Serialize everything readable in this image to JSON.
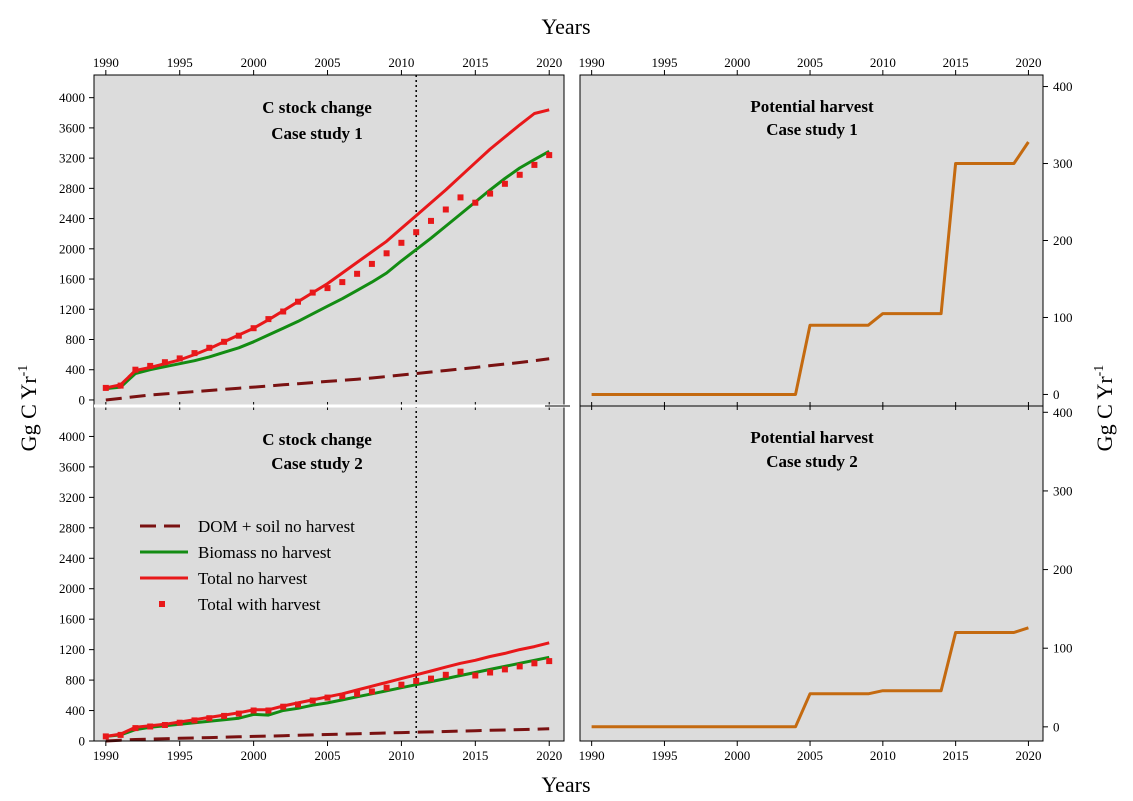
{
  "figure": {
    "x_title_top": "Years",
    "x_title_bottom": "Years",
    "y_title_left": "Gg C Yr",
    "y_title_right": "Gg C Yr",
    "y_title_superscript": "-1",
    "reference_year_dotted_line": 2011,
    "legend_placement": "middle-left of lower-left panel",
    "colors": {
      "panel_bg": "#dcdcdc",
      "dom_soil": "#7a1212",
      "biomass": "#138c13",
      "total_no_harvest": "#e8181a",
      "total_with_harvest": "#e8181a",
      "potential_harvest": "#c46a10"
    },
    "legend": [
      {
        "label": "DOM + soil no harvest",
        "style": "dashed",
        "color": "#7a1212"
      },
      {
        "label": "Biomass no harvest",
        "style": "solid",
        "color": "#138c13"
      },
      {
        "label": "Total no harvest",
        "style": "solid",
        "color": "#e8181a"
      },
      {
        "label": "Total with harvest",
        "style": "dots",
        "color": "#e8181a"
      }
    ]
  },
  "chart_data": [
    {
      "type": "line",
      "panel": "top-left",
      "title_line1": "C stock change",
      "title_line2": "Case study 1",
      "x": [
        1990,
        1991,
        1992,
        1993,
        1994,
        1995,
        1996,
        1997,
        1998,
        1999,
        2000,
        2001,
        2002,
        2003,
        2004,
        2005,
        2006,
        2007,
        2008,
        2009,
        2010,
        2011,
        2012,
        2013,
        2014,
        2015,
        2016,
        2017,
        2018,
        2019,
        2020
      ],
      "xlim": [
        1989.2,
        2021
      ],
      "xticks": [
        1990,
        1995,
        2000,
        2005,
        2010,
        2015,
        2020
      ],
      "ylim": [
        -80,
        4300
      ],
      "yticks": [
        0,
        400,
        800,
        1200,
        1600,
        2000,
        2400,
        2800,
        3200,
        3600,
        4000
      ],
      "grid": false,
      "series": [
        {
          "name": "DOM + soil no harvest",
          "values": [
            0,
            20,
            45,
            65,
            80,
            95,
            110,
            125,
            140,
            155,
            170,
            185,
            200,
            215,
            230,
            245,
            260,
            275,
            290,
            310,
            330,
            350,
            370,
            390,
            410,
            430,
            455,
            475,
            495,
            520,
            545
          ]
        },
        {
          "name": "Biomass no harvest",
          "values": [
            150,
            170,
            350,
            400,
            440,
            480,
            520,
            570,
            630,
            690,
            770,
            860,
            950,
            1040,
            1140,
            1240,
            1340,
            1450,
            1560,
            1680,
            1840,
            1990,
            2140,
            2300,
            2460,
            2620,
            2780,
            2930,
            3070,
            3180,
            3290
          ]
        },
        {
          "name": "Total no harvest",
          "values": [
            160,
            200,
            390,
            430,
            480,
            530,
            600,
            680,
            770,
            860,
            950,
            1060,
            1180,
            1300,
            1420,
            1540,
            1680,
            1820,
            1960,
            2100,
            2270,
            2440,
            2610,
            2780,
            2960,
            3140,
            3320,
            3480,
            3640,
            3790,
            3840
          ]
        },
        {
          "name": "Total with harvest",
          "values": [
            160,
            190,
            400,
            450,
            500,
            550,
            620,
            690,
            770,
            850,
            950,
            1070,
            1170,
            1300,
            1420,
            1480,
            1560,
            1670,
            1800,
            1940,
            2080,
            2220,
            2370,
            2520,
            2680,
            2610,
            2730,
            2860,
            2980,
            3110,
            3240
          ]
        }
      ]
    },
    {
      "type": "line",
      "panel": "top-right",
      "title_line1": "Potential harvest",
      "title_line2": "Case study 1",
      "x": [
        1990,
        2004,
        2005,
        2009,
        2010,
        2014,
        2015,
        2019,
        2020
      ],
      "xlim": [
        1989.2,
        2021
      ],
      "xticks": [
        1990,
        1995,
        2000,
        2005,
        2010,
        2015,
        2020
      ],
      "ylim": [
        -15,
        415
      ],
      "yticks": [
        0,
        100,
        200,
        300,
        400
      ],
      "grid": false,
      "series": [
        {
          "name": "Potential harvest",
          "values": [
            0,
            0,
            90,
            90,
            105,
            105,
            300,
            300,
            328
          ]
        }
      ]
    },
    {
      "type": "line",
      "panel": "bottom-left",
      "title_line1": "C stock change",
      "title_line2": "Case study 2",
      "x": [
        1990,
        1991,
        1992,
        1993,
        1994,
        1995,
        1996,
        1997,
        1998,
        1999,
        2000,
        2001,
        2002,
        2003,
        2004,
        2005,
        2006,
        2007,
        2008,
        2009,
        2010,
        2011,
        2012,
        2013,
        2014,
        2015,
        2016,
        2017,
        2018,
        2019,
        2020
      ],
      "xlim": [
        1989.2,
        2021
      ],
      "xticks": [
        1990,
        1995,
        2000,
        2005,
        2010,
        2015,
        2020
      ],
      "ylim": [
        0,
        4400
      ],
      "yticks": [
        0,
        400,
        800,
        1200,
        1600,
        2000,
        2400,
        2800,
        3200,
        3600,
        4000
      ],
      "grid": false,
      "series": [
        {
          "name": "DOM + soil no harvest",
          "values": [
            0,
            10,
            20,
            25,
            30,
            35,
            40,
            45,
            50,
            55,
            60,
            65,
            70,
            75,
            80,
            85,
            90,
            95,
            100,
            105,
            110,
            115,
            120,
            125,
            130,
            135,
            140,
            145,
            150,
            155,
            160
          ]
        },
        {
          "name": "Biomass no harvest",
          "values": [
            60,
            80,
            150,
            180,
            200,
            220,
            240,
            260,
            280,
            300,
            350,
            340,
            400,
            430,
            470,
            500,
            540,
            580,
            620,
            660,
            700,
            740,
            780,
            820,
            860,
            900,
            940,
            980,
            1020,
            1060,
            1100
          ]
        },
        {
          "name": "Total no harvest",
          "values": [
            60,
            90,
            180,
            200,
            220,
            250,
            280,
            310,
            340,
            370,
            410,
            410,
            460,
            500,
            540,
            580,
            620,
            670,
            720,
            770,
            820,
            870,
            920,
            970,
            1020,
            1060,
            1110,
            1150,
            1200,
            1240,
            1290
          ]
        },
        {
          "name": "Total with harvest",
          "values": [
            60,
            80,
            170,
            190,
            210,
            240,
            270,
            300,
            330,
            360,
            400,
            400,
            450,
            480,
            530,
            570,
            590,
            620,
            650,
            700,
            740,
            790,
            820,
            870,
            910,
            860,
            900,
            940,
            980,
            1020,
            1050
          ]
        }
      ]
    },
    {
      "type": "line",
      "panel": "bottom-right",
      "title_line1": "Potential harvest",
      "title_line2": "Case study 2",
      "x": [
        1990,
        2004,
        2005,
        2009,
        2010,
        2014,
        2015,
        2019,
        2020
      ],
      "xlim": [
        1989.2,
        2021
      ],
      "xticks": [
        1990,
        1995,
        2000,
        2005,
        2010,
        2015,
        2020
      ],
      "ylim": [
        -18,
        408
      ],
      "yticks": [
        0,
        100,
        200,
        300,
        400
      ],
      "grid": false,
      "series": [
        {
          "name": "Potential harvest",
          "values": [
            0,
            0,
            42,
            42,
            46,
            46,
            120,
            120,
            126
          ]
        }
      ]
    }
  ]
}
